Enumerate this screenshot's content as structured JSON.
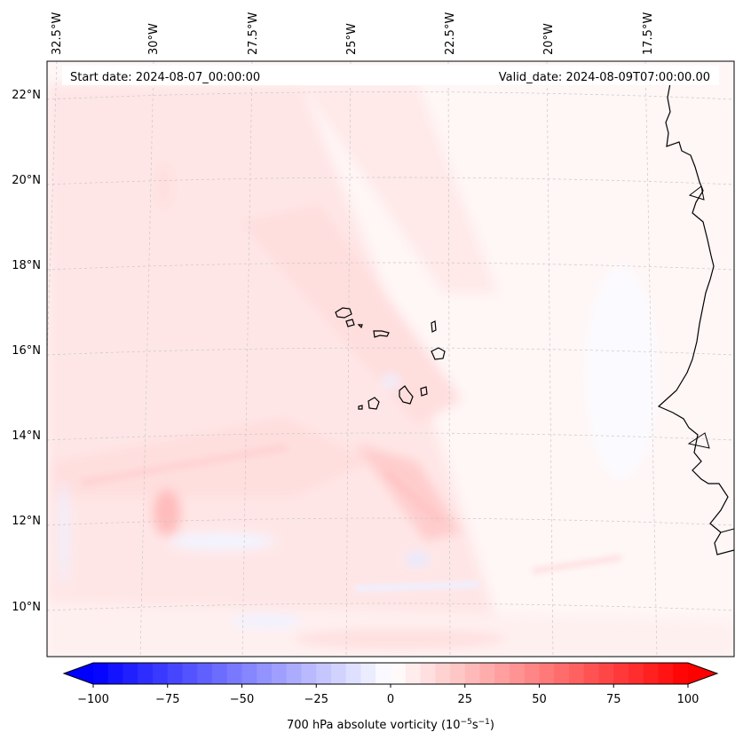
{
  "map": {
    "start_label": "Start date: 2024-08-07_00:00:00",
    "valid_label": "Valid_date: 2024-08-09T07:00:00.00",
    "lon_labels": [
      "32.5°W",
      "30°W",
      "27.5°W",
      "25°W",
      "22.5°W",
      "20°W",
      "17.5°W"
    ],
    "lat_labels": [
      "22°N",
      "20°N",
      "18°N",
      "16°N",
      "14°N",
      "12°N",
      "10°N"
    ],
    "gridlines": true,
    "features": [
      "Cape Verde islands",
      "West African coastline"
    ]
  },
  "colorbar": {
    "ticks": [
      "−100",
      "−75",
      "−50",
      "−25",
      "0",
      "25",
      "50",
      "75",
      "100"
    ],
    "tick_values": [
      -100,
      -75,
      -50,
      -25,
      0,
      25,
      50,
      75,
      100
    ],
    "min": -100,
    "max": 100,
    "step": 5,
    "extend": "both",
    "label": "700 hPa absolute vorticity (10",
    "label_exp1": "−5",
    "label_mid": "s",
    "label_exp2": "−1",
    "label_end": ")"
  },
  "colors": {
    "negative": "#0000ff",
    "positive": "#ff0000",
    "neutral": "#ffffff",
    "coast": "#000000",
    "grid": "#c8c8c8"
  }
}
